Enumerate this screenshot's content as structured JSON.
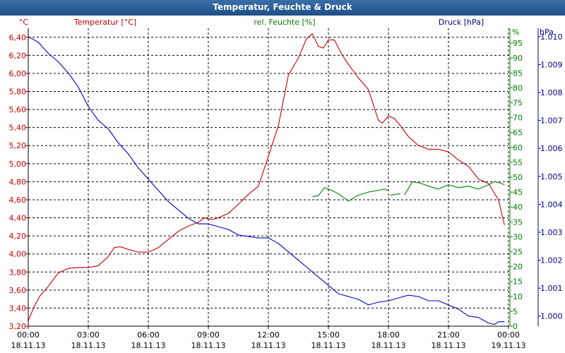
{
  "chart_data": {
    "type": "line",
    "title": "Temperatur, Feuchte & Druck",
    "headers": {
      "temperature": "Temperatur [°C]",
      "humidity": "rel. Feuchte [%]",
      "pressure": "Druck [hPa]"
    },
    "axes": {
      "left": {
        "unit": "°C",
        "min": 3.2,
        "max": 6.5,
        "tick_start": 3.2,
        "tick_step": 0.2,
        "tick_count": 17,
        "ticks": [
          "3,20",
          "3,40",
          "3,60",
          "3,80",
          "4,00",
          "4,20",
          "4,40",
          "4,60",
          "4,80",
          "5,00",
          "5,20",
          "5,40",
          "5,60",
          "5,80",
          "6,00",
          "6,20",
          "6,40"
        ]
      },
      "mid": {
        "unit": "%",
        "min": 0,
        "max": 100,
        "tick_start": 0,
        "tick_step": 5,
        "tick_count": 20,
        "ticks": [
          "0",
          "5",
          "10",
          "15",
          "20",
          "25",
          "30",
          "35",
          "40",
          "45",
          "50",
          "55",
          "60",
          "65",
          "70",
          "75",
          "80",
          "85",
          "90",
          "95"
        ]
      },
      "right": {
        "unit": "hPa",
        "min": 999.64,
        "max": 1010.3,
        "tick_start": 1000,
        "tick_step": 1,
        "tick_count": 11,
        "ticks": [
          "1.000",
          "1.001",
          "1.002",
          "1.003",
          "1.004",
          "1.005",
          "1.006",
          "1.007",
          "1.008",
          "1.009",
          "1.010"
        ]
      }
    },
    "x": {
      "min": 0,
      "max": 24,
      "ticks": [
        {
          "time": "00:00",
          "date": "18.11.13"
        },
        {
          "time": "03:00",
          "date": "18.11.13"
        },
        {
          "time": "06:00",
          "date": "18.11.13"
        },
        {
          "time": "09:00",
          "date": "18.11.13"
        },
        {
          "time": "12:00",
          "date": "18.11.13"
        },
        {
          "time": "15:00",
          "date": "18.11.13"
        },
        {
          "time": "18:00",
          "date": "18.11.13"
        },
        {
          "time": "21:00",
          "date": "18.11.13"
        },
        {
          "time": "00:00",
          "date": "19.11.13"
        }
      ]
    },
    "series": [
      {
        "name": "Temperatur",
        "axis": "left",
        "color": "#c00000",
        "points": [
          [
            0,
            3.26
          ],
          [
            0.3,
            3.42
          ],
          [
            0.6,
            3.54
          ],
          [
            1.0,
            3.64
          ],
          [
            1.5,
            3.79
          ],
          [
            2.0,
            3.84
          ],
          [
            2.5,
            3.85
          ],
          [
            3.0,
            3.85
          ],
          [
            3.5,
            3.87
          ],
          [
            4.0,
            3.97
          ],
          [
            4.3,
            4.07
          ],
          [
            4.6,
            4.08
          ],
          [
            5.0,
            4.05
          ],
          [
            5.5,
            4.02
          ],
          [
            6.0,
            4.02
          ],
          [
            6.5,
            4.07
          ],
          [
            7.0,
            4.16
          ],
          [
            7.5,
            4.25
          ],
          [
            8.0,
            4.31
          ],
          [
            8.5,
            4.35
          ],
          [
            8.8,
            4.4
          ],
          [
            9.0,
            4.39
          ],
          [
            9.2,
            4.38
          ],
          [
            9.5,
            4.4
          ],
          [
            10.0,
            4.45
          ],
          [
            10.5,
            4.55
          ],
          [
            11.0,
            4.66
          ],
          [
            11.5,
            4.75
          ],
          [
            12.0,
            5.08
          ],
          [
            12.5,
            5.42
          ],
          [
            13.0,
            5.98
          ],
          [
            13.5,
            6.17
          ],
          [
            13.9,
            6.38
          ],
          [
            14.2,
            6.44
          ],
          [
            14.5,
            6.3
          ],
          [
            14.75,
            6.28
          ],
          [
            15.0,
            6.37
          ],
          [
            15.3,
            6.37
          ],
          [
            15.7,
            6.2
          ],
          [
            16.0,
            6.1
          ],
          [
            16.5,
            5.95
          ],
          [
            17.0,
            5.82
          ],
          [
            17.5,
            5.48
          ],
          [
            17.7,
            5.45
          ],
          [
            18.0,
            5.53
          ],
          [
            18.3,
            5.5
          ],
          [
            18.6,
            5.42
          ],
          [
            19.0,
            5.3
          ],
          [
            19.5,
            5.2
          ],
          [
            20.0,
            5.16
          ],
          [
            20.5,
            5.16
          ],
          [
            21.0,
            5.13
          ],
          [
            21.5,
            5.04
          ],
          [
            22.0,
            4.97
          ],
          [
            22.5,
            4.83
          ],
          [
            23.0,
            4.78
          ],
          [
            23.5,
            4.6
          ],
          [
            23.8,
            4.32
          ]
        ]
      },
      {
        "name": "rel. Feuchte",
        "axis": "mid",
        "color": "#008000",
        "segments": [
          [
            [
              14.2,
              43.5
            ],
            [
              14.5,
              43.8
            ],
            [
              14.8,
              46.5
            ],
            [
              15.2,
              45.5
            ],
            [
              15.6,
              44.0
            ],
            [
              16.0,
              42.0
            ],
            [
              16.5,
              44.0
            ],
            [
              17.0,
              45.0
            ],
            [
              17.4,
              45.5
            ],
            [
              17.8,
              46.0
            ],
            [
              18.0,
              45.5
            ]
          ],
          [
            [
              18.1,
              44.0
            ],
            [
              18.6,
              44.5
            ]
          ],
          [
            [
              18.8,
              44.0
            ],
            [
              19.2,
              48.5
            ],
            [
              19.6,
              48.0
            ],
            [
              20.0,
              47.0
            ],
            [
              20.5,
              46.0
            ],
            [
              21.0,
              47.5
            ],
            [
              21.5,
              46.5
            ],
            [
              22.0,
              47.0
            ],
            [
              22.5,
              46.0
            ],
            [
              23.0,
              47.5
            ],
            [
              23.3,
              48.5
            ],
            [
              23.6,
              48.0
            ],
            [
              23.8,
              47.5
            ]
          ]
        ]
      },
      {
        "name": "Druck",
        "axis": "right",
        "color": "#0000c0",
        "points": [
          [
            0,
            1010.0
          ],
          [
            0.5,
            1009.8
          ],
          [
            1.0,
            1009.4
          ],
          [
            1.5,
            1009.1
          ],
          [
            2.0,
            1008.7
          ],
          [
            2.5,
            1008.2
          ],
          [
            3.0,
            1007.5
          ],
          [
            3.5,
            1007.0
          ],
          [
            4.0,
            1006.7
          ],
          [
            4.5,
            1006.2
          ],
          [
            5.0,
            1005.8
          ],
          [
            5.5,
            1005.3
          ],
          [
            6.0,
            1004.9
          ],
          [
            6.5,
            1004.5
          ],
          [
            7.0,
            1004.1
          ],
          [
            7.5,
            1003.8
          ],
          [
            8.0,
            1003.5
          ],
          [
            8.5,
            1003.3
          ],
          [
            9.0,
            1003.3
          ],
          [
            9.5,
            1003.2
          ],
          [
            10.0,
            1003.1
          ],
          [
            10.5,
            1002.9
          ],
          [
            11.0,
            1002.85
          ],
          [
            11.5,
            1002.8
          ],
          [
            12.0,
            1002.8
          ],
          [
            12.5,
            1002.6
          ],
          [
            13.0,
            1002.3
          ],
          [
            13.5,
            1002.0
          ],
          [
            14.0,
            1001.7
          ],
          [
            14.5,
            1001.4
          ],
          [
            15.0,
            1001.1
          ],
          [
            15.5,
            1000.8
          ],
          [
            16.0,
            1000.7
          ],
          [
            16.5,
            1000.6
          ],
          [
            17.0,
            1000.4
          ],
          [
            17.5,
            1000.5
          ],
          [
            18.0,
            1000.55
          ],
          [
            18.5,
            1000.65
          ],
          [
            19.0,
            1000.75
          ],
          [
            19.5,
            1000.7
          ],
          [
            20.0,
            1000.55
          ],
          [
            20.5,
            1000.55
          ],
          [
            21.0,
            1000.4
          ],
          [
            21.5,
            1000.25
          ],
          [
            22.0,
            1000.0
          ],
          [
            22.5,
            999.95
          ],
          [
            23.0,
            999.75
          ],
          [
            23.3,
            999.7
          ],
          [
            23.5,
            999.8
          ],
          [
            23.8,
            999.8
          ]
        ]
      }
    ]
  }
}
